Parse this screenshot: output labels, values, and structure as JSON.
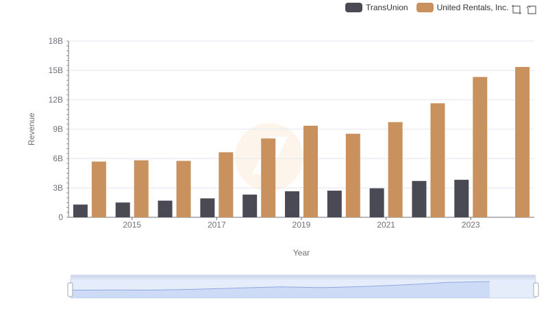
{
  "legend": {
    "items": [
      {
        "name": "TransUnion",
        "color": "#4a4a55"
      },
      {
        "name": "United Rentals, Inc.",
        "color": "#c8915d"
      }
    ]
  },
  "toolbox": {
    "icons": [
      "zoom-icon",
      "restore-icon"
    ]
  },
  "chart_data": {
    "type": "bar",
    "xlabel": "Year",
    "ylabel": "Revenue",
    "ylim": [
      0,
      18000000000
    ],
    "yticks": [
      "0",
      "3B",
      "6B",
      "9B",
      "12B",
      "15B",
      "18B"
    ],
    "xtick_labels": [
      "2015",
      "2017",
      "2019",
      "2021",
      "2023"
    ],
    "categories": [
      "2014",
      "2015",
      "2016",
      "2017",
      "2018",
      "2019",
      "2020",
      "2021",
      "2022",
      "2023",
      "2024"
    ],
    "series": [
      {
        "name": "TransUnion",
        "color": "#4a4a55",
        "values": [
          1300000000,
          1510000000,
          1700000000,
          1930000000,
          2320000000,
          2660000000,
          2720000000,
          2960000000,
          3710000000,
          3830000000,
          null
        ]
      },
      {
        "name": "United Rentals, Inc.",
        "color": "#c8915d",
        "values": [
          5690000000,
          5820000000,
          5760000000,
          6640000000,
          8050000000,
          9350000000,
          8530000000,
          9720000000,
          11640000000,
          14330000000,
          15350000000
        ]
      }
    ],
    "grid": true,
    "legend_position": "top-right",
    "datazoom": {
      "start": 0,
      "end": 100
    }
  }
}
